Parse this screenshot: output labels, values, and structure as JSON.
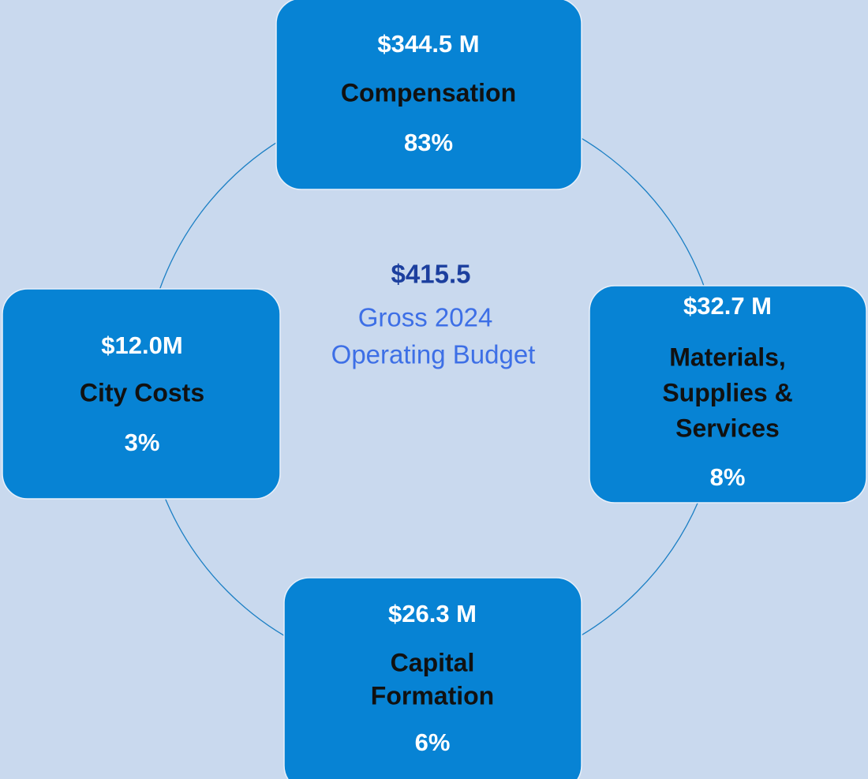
{
  "center": {
    "amount": "$415.5",
    "lines": [
      "Gross 2024",
      "Operating Budget"
    ]
  },
  "nodes": [
    {
      "amount": "$344.5 M",
      "name": [
        "Compensation"
      ],
      "percent": "83%"
    },
    {
      "amount": "$32.7 M",
      "name": [
        "Materials,",
        "Supplies &",
        "Services"
      ],
      "percent": "8%"
    },
    {
      "amount": "$26.3 M",
      "name": [
        "Capital",
        "Formation"
      ],
      "percent": "6%"
    },
    {
      "amount": "$12.0M",
      "name": [
        "City Costs"
      ],
      "percent": "3%"
    }
  ]
}
